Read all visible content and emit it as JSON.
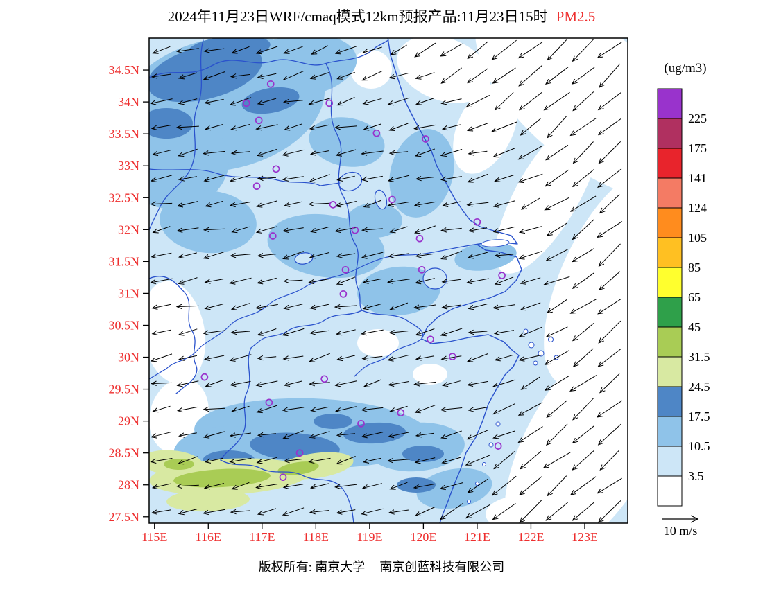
{
  "title": {
    "main": "2024年11月23日WRF/cmaq模式12km预报产品:11月23日15时",
    "pollutant": "PM2.5"
  },
  "footer": {
    "left": "版权所有: 南京大学",
    "right": "南京创蓝科技有限公司"
  },
  "colors": {
    "axis_label": "#ee2e2e",
    "title_highlight": "#ee2e2e",
    "boundary_line": "#2a52cc",
    "station_marker": "#9932cc",
    "arrow": "#000000",
    "map_border": "#000000"
  },
  "chart_data": {
    "type": "heatmap",
    "subtype": "filled-contour map with wind vectors",
    "variable": "PM2.5",
    "units": "ug/m3",
    "lon_range": [
      114.9,
      123.8
    ],
    "lat_range": [
      27.4,
      35.0
    ],
    "lon_ticks": [
      {
        "value": 115,
        "label": "115E"
      },
      {
        "value": 116,
        "label": "116E"
      },
      {
        "value": 117,
        "label": "117E"
      },
      {
        "value": 118,
        "label": "118E"
      },
      {
        "value": 119,
        "label": "119E"
      },
      {
        "value": 120,
        "label": "120E"
      },
      {
        "value": 121,
        "label": "121E"
      },
      {
        "value": 122,
        "label": "122E"
      },
      {
        "value": 123,
        "label": "123E"
      }
    ],
    "lat_ticks": [
      {
        "value": 34.5,
        "label": "34.5N"
      },
      {
        "value": 34,
        "label": "34N"
      },
      {
        "value": 33.5,
        "label": "33.5N"
      },
      {
        "value": 33,
        "label": "33N"
      },
      {
        "value": 32.5,
        "label": "32.5N"
      },
      {
        "value": 32,
        "label": "32N"
      },
      {
        "value": 31.5,
        "label": "31.5N"
      },
      {
        "value": 31,
        "label": "31N"
      },
      {
        "value": 30.5,
        "label": "30.5N"
      },
      {
        "value": 30,
        "label": "30N"
      },
      {
        "value": 29.5,
        "label": "29.5N"
      },
      {
        "value": 29,
        "label": "29N"
      },
      {
        "value": 28.5,
        "label": "28.5N"
      },
      {
        "value": 28,
        "label": "28N"
      },
      {
        "value": 27.5,
        "label": "27.5N"
      }
    ],
    "colorbar": {
      "units_label": "(ug/m3)",
      "labels": [
        "225",
        "175",
        "141",
        "124",
        "105",
        "85",
        "65",
        "45",
        "31.5",
        "24.5",
        "17.5",
        "10.5",
        "3.5"
      ],
      "colors_top_to_bottom": [
        "#9933cc",
        "#b03060",
        "#e8242c",
        "#f47b64",
        "#ff8c1e",
        "#ffc022",
        "#ffff2e",
        "#2fa04a",
        "#a9cc55",
        "#d8e9a2",
        "#4e86c6",
        "#8fc3e9",
        "#cde6f7",
        "#ffffff"
      ]
    },
    "wind": {
      "reference_label": "10 m/s",
      "reference_speed_mps": 10,
      "pattern": "Northeasterly flow: arrows point southwest; nearly westward over land, stronger with more southward component over the sea"
    },
    "stations_lonlat": [
      [
        117.16,
        34.28
      ],
      [
        116.71,
        33.98
      ],
      [
        116.94,
        33.71
      ],
      [
        118.25,
        33.98
      ],
      [
        119.13,
        33.51
      ],
      [
        120.04,
        33.42
      ],
      [
        117.26,
        32.95
      ],
      [
        116.9,
        32.68
      ],
      [
        118.32,
        32.39
      ],
      [
        119.42,
        32.47
      ],
      [
        121.0,
        32.12
      ],
      [
        117.2,
        31.9
      ],
      [
        118.73,
        31.99
      ],
      [
        119.93,
        31.86
      ],
      [
        118.55,
        31.37
      ],
      [
        119.97,
        31.37
      ],
      [
        121.46,
        31.28
      ],
      [
        118.51,
        30.99
      ],
      [
        120.13,
        30.28
      ],
      [
        120.54,
        30.01
      ],
      [
        115.93,
        29.69
      ],
      [
        118.16,
        29.66
      ],
      [
        117.13,
        29.29
      ],
      [
        119.58,
        29.13
      ],
      [
        118.84,
        28.96
      ],
      [
        121.39,
        28.61
      ],
      [
        117.7,
        28.5
      ],
      [
        117.39,
        28.12
      ]
    ],
    "field_summary": "PM2.5 mostly 3.5-17.5 ug/m3 over land (light/medium blue), 17.5-24.5 patches in the northwest and along a 29N band, 24.5-45 (pale green to yellow-green) strip near 28-28.5N in the southwest, below 3.5 (white) over the open sea"
  }
}
